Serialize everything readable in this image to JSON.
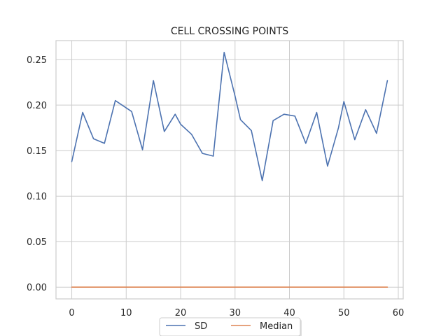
{
  "chart_data": {
    "type": "line",
    "title": "CELL CROSSING POINTS",
    "xlabel": "",
    "ylabel": "",
    "xlim": [
      -2.9,
      60.9
    ],
    "ylim": [
      -0.0129,
      0.2709
    ],
    "x_ticks": [
      0,
      10,
      20,
      30,
      40,
      50,
      60
    ],
    "y_ticks": [
      0.0,
      0.05,
      0.1,
      0.15,
      0.2,
      0.25
    ],
    "x_tick_labels": [
      "0",
      "10",
      "20",
      "30",
      "40",
      "50",
      "60"
    ],
    "y_tick_labels": [
      "0.00",
      "0.05",
      "0.10",
      "0.15",
      "0.20",
      "0.25"
    ],
    "grid": true,
    "legend_position": "bottom-center",
    "series": [
      {
        "name": "SD",
        "color": "#4c72b0",
        "x": [
          0,
          2,
          4,
          6,
          8,
          11,
          13,
          15,
          17,
          19,
          20,
          22,
          24,
          26,
          28,
          30,
          31,
          33,
          35,
          37,
          39,
          41,
          43,
          45,
          47,
          49,
          50,
          52,
          54,
          56,
          58
        ],
        "y": [
          0.138,
          0.192,
          0.163,
          0.158,
          0.205,
          0.193,
          0.151,
          0.227,
          0.171,
          0.19,
          0.179,
          0.168,
          0.147,
          0.144,
          0.258,
          0.21,
          0.184,
          0.172,
          0.117,
          0.183,
          0.19,
          0.188,
          0.158,
          0.192,
          0.133,
          0.175,
          0.204,
          0.162,
          0.195,
          0.169,
          0.227
        ]
      },
      {
        "name": "Median",
        "color": "#dd8452",
        "x": [
          0,
          58
        ],
        "y": [
          0.0,
          0.0
        ]
      }
    ]
  }
}
